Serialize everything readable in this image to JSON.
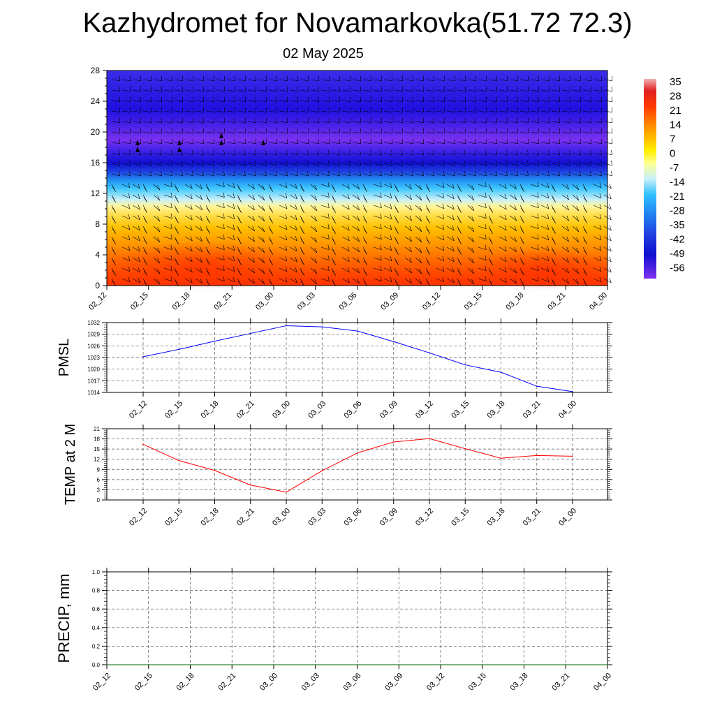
{
  "header": {
    "title": "Kazhydromet for Novamarkovka(51.72 72.3)",
    "date": "02 May 2025"
  },
  "colorbar": {
    "labels": [
      "35",
      "28",
      "21",
      "14",
      "7",
      "0",
      "-7",
      "-14",
      "-21",
      "-28",
      "-35",
      "-42",
      "-49",
      "-56"
    ]
  },
  "chart_data": [
    {
      "type": "heatmap",
      "name": "upper-air temperature cross-section",
      "x_ticks": [
        "02_12",
        "02_15",
        "02_18",
        "02_21",
        "03_00",
        "03_03",
        "03_06",
        "03_09",
        "03_12",
        "03_15",
        "03_18",
        "03_21",
        "04_00"
      ],
      "y_ticks": [
        "0",
        "4",
        "8",
        "12",
        "16",
        "20",
        "24",
        "28"
      ],
      "ylim": [
        0,
        28
      ],
      "color_range": [
        -60,
        38
      ],
      "wind_barbs": true
    },
    {
      "type": "line",
      "ylabel": "PMSL",
      "x": [
        "02_12",
        "02_15",
        "02_18",
        "02_21",
        "03_00",
        "03_03",
        "03_06",
        "03_09",
        "03_12",
        "03_15",
        "03_18",
        "03_21",
        "04_00"
      ],
      "series": [
        {
          "color": "#0000ff",
          "values": [
            1023.2,
            1025.1,
            1027.2,
            1029.2,
            1031.2,
            1030.9,
            1029.8,
            1027.1,
            1024.2,
            1021.1,
            1019.2,
            1015.6,
            1014.2
          ]
        }
      ],
      "ylim": [
        1014,
        1032
      ],
      "y_ticks": [
        "1014",
        "1017",
        "1020",
        "1023",
        "1026",
        "1029",
        "1032"
      ],
      "grid": true
    },
    {
      "type": "line",
      "ylabel": "TEMP at 2 M",
      "x": [
        "02_12",
        "02_15",
        "02_18",
        "02_21",
        "03_00",
        "03_03",
        "03_06",
        "03_09",
        "03_12",
        "03_15",
        "03_18",
        "03_21",
        "04_00"
      ],
      "series": [
        {
          "color": "#ff0000",
          "values": [
            16.4,
            11.6,
            8.7,
            4.4,
            2.3,
            8.6,
            13.9,
            17.1,
            18.1,
            15.1,
            12.3,
            13.1,
            12.9
          ]
        }
      ],
      "ylim": [
        0,
        21
      ],
      "y_ticks": [
        "0",
        "3",
        "6",
        "9",
        "12",
        "15",
        "18",
        "21"
      ],
      "grid": true
    },
    {
      "type": "line",
      "ylabel": "PRECIP, mm",
      "x": [
        "02_12",
        "02_15",
        "02_18",
        "02_21",
        "03_00",
        "03_03",
        "03_06",
        "03_09",
        "03_12",
        "03_15",
        "03_18",
        "03_21",
        "04_00"
      ],
      "series": [
        {
          "color": "#006400",
          "values": [
            0,
            0,
            0,
            0,
            0,
            0,
            0,
            0,
            0,
            0,
            0,
            0,
            0
          ]
        }
      ],
      "ylim": [
        0,
        1
      ],
      "y_ticks": [
        "0.0",
        "0.2",
        "0.4",
        "0.6",
        "0.8",
        "1.0"
      ],
      "grid": true
    }
  ]
}
